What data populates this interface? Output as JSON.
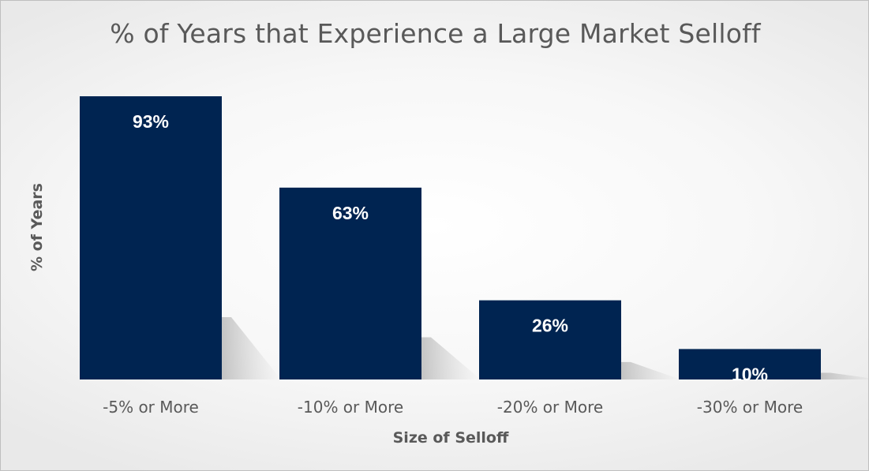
{
  "chart_data": {
    "type": "bar",
    "title": "% of Years that Experience a Large Market Selloff",
    "xlabel": "Size of Selloff",
    "ylabel": "% of Years",
    "categories": [
      "-5% or More",
      "-10% or More",
      "-20% or More",
      "-30% or More"
    ],
    "values": [
      93,
      63,
      26,
      10
    ],
    "value_labels": [
      "93%",
      "63%",
      "26%",
      "10%"
    ],
    "ylim": [
      0,
      100
    ],
    "grid": false,
    "legend": "none",
    "colors": {
      "bar": "#002451",
      "bar_label": "#ffffff",
      "text": "#595959"
    }
  }
}
